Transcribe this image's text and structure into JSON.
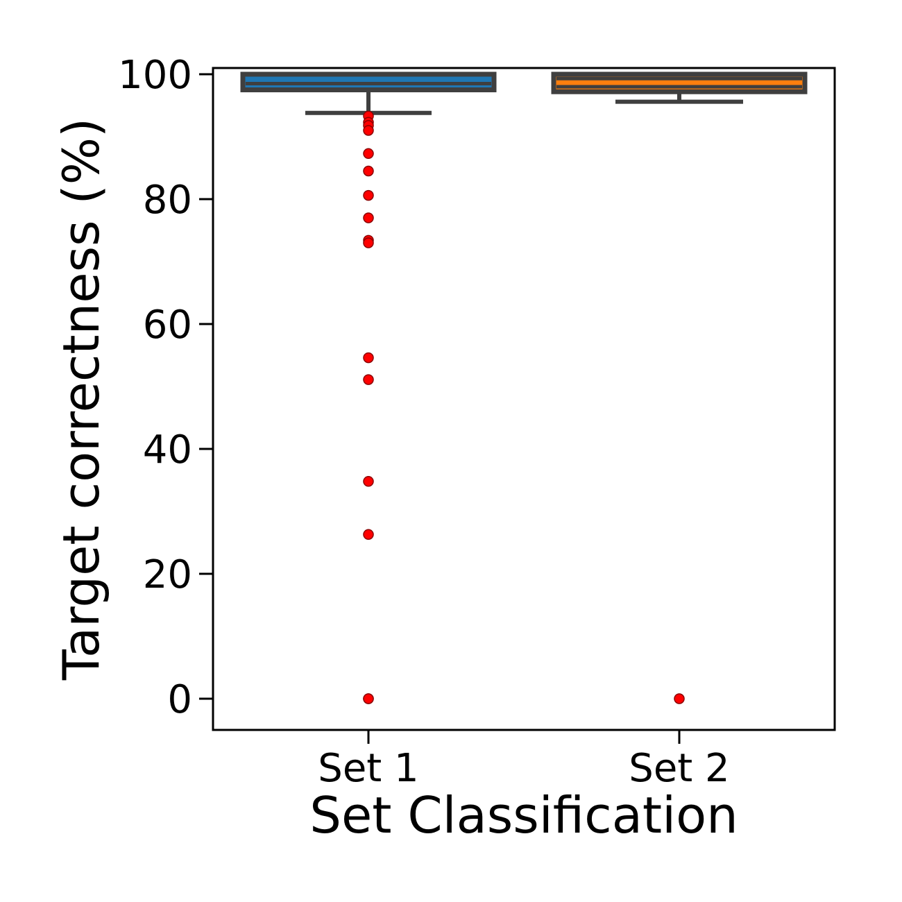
{
  "chart_data": {
    "type": "box",
    "title": "",
    "xlabel": "Set Classification",
    "ylabel": "Target correctness (%)",
    "ylim": [
      -5,
      101
    ],
    "yticks": [
      0,
      20,
      40,
      60,
      80,
      100
    ],
    "grid": false,
    "legend": "none",
    "categories": [
      "Set 1",
      "Set 2"
    ],
    "series": [
      {
        "category": "Set 1",
        "color": "#1f77b4",
        "q1": 97.5,
        "median": 98.5,
        "q3": 100,
        "whisker_low": 93.8,
        "whisker_high": 100,
        "outliers": [
          93.3,
          92.3,
          91.8,
          91.0,
          87.3,
          84.5,
          80.6,
          77.0,
          73.4,
          73.0,
          54.6,
          51.1,
          34.8,
          26.3,
          0,
          0
        ]
      },
      {
        "category": "Set 2",
        "color": "#ff7f0e",
        "q1": 97.2,
        "median": 98.0,
        "q3": 100,
        "whisker_low": 95.6,
        "whisker_high": 100,
        "extra_line": 99.3,
        "outliers": [
          0
        ]
      }
    ],
    "outlier_color": "#ff0000",
    "box_edge_color": "#3f3f3f"
  }
}
